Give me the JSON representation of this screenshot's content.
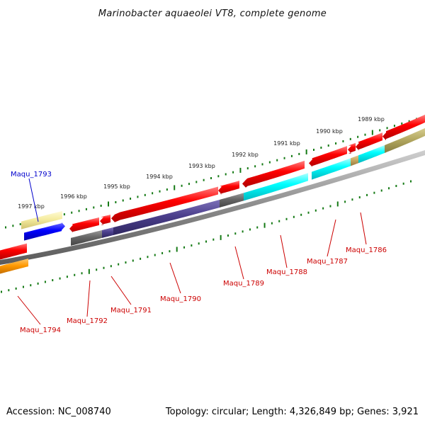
{
  "title": "Marinobacter aquaeolei VT8, complete genome",
  "footer": {
    "accession": "Accession: NC_008740",
    "topology": "Topology: circular; Length: 4,326,849 bp; Genes: 3,921"
  },
  "ruler_ticks": [
    "1989 kbp",
    "1990 kbp",
    "1991 kbp",
    "1992 kbp",
    "1993 kbp",
    "1994 kbp",
    "1995 kbp",
    "1996 kbp",
    "1997 kbp"
  ],
  "genes": [
    {
      "label": "Maqu_1786",
      "color": "#cc0000"
    },
    {
      "label": "Maqu_1787",
      "color": "#cc0000"
    },
    {
      "label": "Maqu_1788",
      "color": "#cc0000"
    },
    {
      "label": "Maqu_1789",
      "color": "#cc0000"
    },
    {
      "label": "Maqu_1790",
      "color": "#cc0000"
    },
    {
      "label": "Maqu_1791",
      "color": "#cc0000"
    },
    {
      "label": "Maqu_1792",
      "color": "#cc0000"
    },
    {
      "label": "Maqu_1793",
      "color": "#0000cc"
    },
    {
      "label": "Maqu_1794",
      "color": "#cc0000"
    }
  ],
  "colors": {
    "cds": "#ff0000",
    "cog_cyan": "#00ffff",
    "cog_purple": "#4b3f8c",
    "cog_grey": "#666666",
    "cog_olive": "#b3a860",
    "cog_tan": "#c8a860",
    "cog_orange": "#ff9900",
    "cog_yellow": "#f5ec9f",
    "cog_blue": "#0000ff",
    "backbone": "#8a8a8a",
    "tick": "#157a15"
  }
}
